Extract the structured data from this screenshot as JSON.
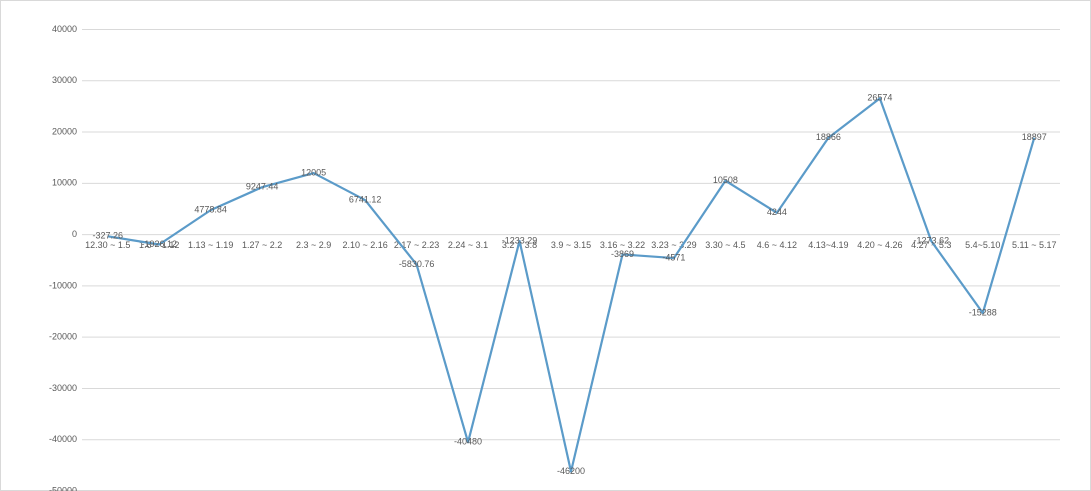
{
  "chart_data": {
    "type": "line",
    "categories": [
      "12.30 ~ 1.5",
      "1.6 ~ 1.12",
      "1.13 ~ 1.19",
      "1.27 ~ 2.2",
      "2.3 ~ 2.9",
      "2.10 ~ 2.16",
      "2.17 ~ 2.23",
      "2.24 ~ 3.1",
      "3.2 ~ 3.8",
      "3.9 ~ 3.15",
      "3.16 ~ 3.22",
      "3.23 ~ 3.29",
      "3.30 ~ 4.5",
      "4.6 ~ 4.12",
      "4.13~4.19",
      "4.20 ~ 4.26",
      "4.27 ~ 5.3",
      "5.4~5.10",
      "5.11 ~ 5.17"
    ],
    "series": [
      {
        "color": "#5b9bc9",
        "values": [
          -327.26,
          -1926.12,
          4778.84,
          9247.44,
          12005,
          6741.12,
          -5830.76,
          -40480,
          -1233.29,
          -46200,
          -3869,
          -4571,
          10508,
          4244,
          18866,
          26574,
          -1273.62,
          -15288,
          18897
        ]
      }
    ],
    "ylim": [
      -50000,
      40000
    ],
    "yticks": [
      -50000,
      -40000,
      -30000,
      -20000,
      -10000,
      0,
      10000,
      20000,
      30000,
      40000
    ],
    "grid": true
  }
}
